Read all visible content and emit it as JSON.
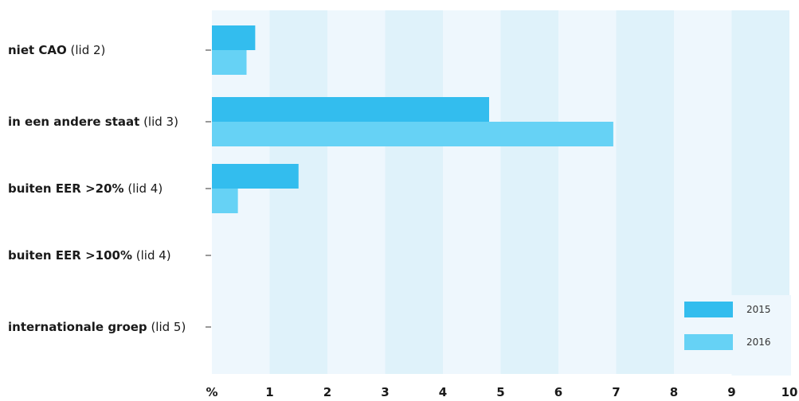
{
  "chart_data": {
    "type": "bar",
    "orientation": "horizontal",
    "categories": [
      "niet CAO (lid 2)",
      "in een andere staat (lid 3)",
      "buiten EER >20% (lid 4)",
      "buiten EER >100% (lid 4)",
      "internationale groep (lid 5)"
    ],
    "series": [
      {
        "name": "2015",
        "color": "#33BDEE",
        "values": [
          0.75,
          4.8,
          1.5,
          0,
          0
        ]
      },
      {
        "name": "2016",
        "color": "#66D2F5",
        "values": [
          0.6,
          6.95,
          0.45,
          0,
          0
        ]
      }
    ],
    "x_ticks": [
      "%",
      "1",
      "2",
      "3",
      "4",
      "5",
      "6",
      "7",
      "8",
      "9",
      "10"
    ],
    "xlim": [
      0,
      10
    ],
    "band_colors": [
      "#EEF7FD",
      "#DFF2FA"
    ],
    "legend_position": "bottom-right",
    "grid": false
  }
}
